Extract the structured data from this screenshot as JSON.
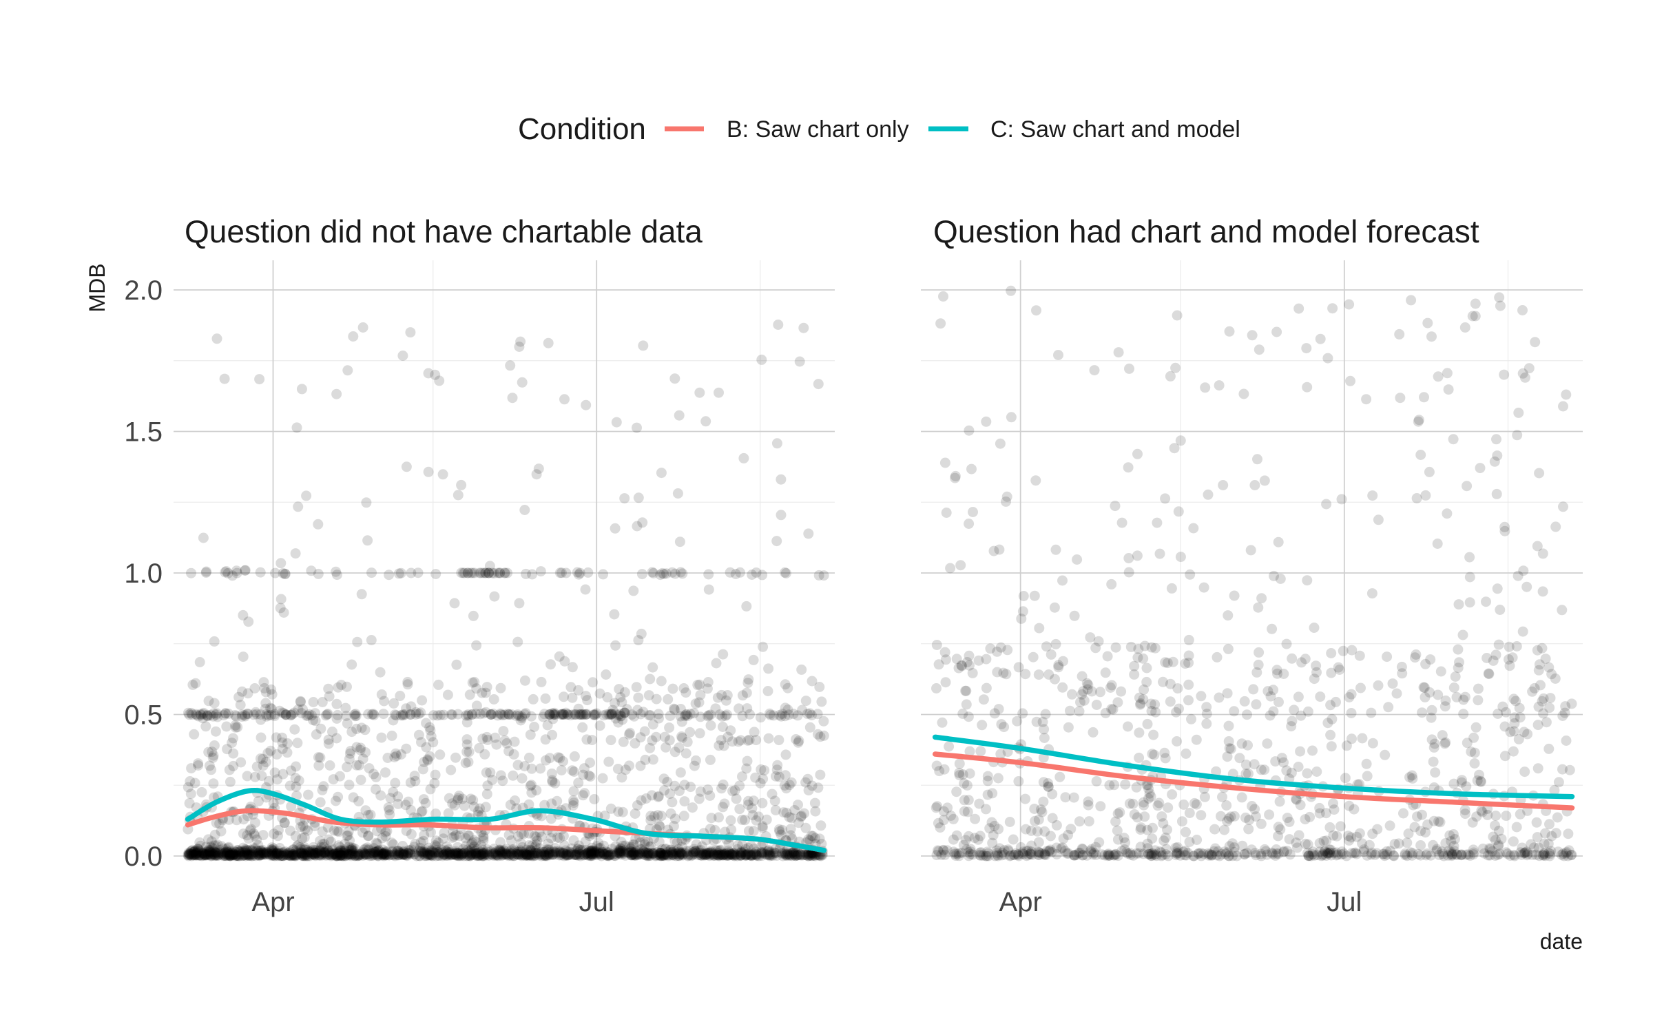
{
  "chart_data": {
    "type": "scatter",
    "legend": {
      "title": "Condition",
      "position": "top",
      "entries": [
        {
          "label": "B: Saw chart only",
          "color": "#F8766D"
        },
        {
          "label": "C: Saw chart and model",
          "color": "#00BFC4"
        }
      ]
    },
    "y_axis": {
      "label": "MDB",
      "range": [
        0,
        2
      ],
      "ticks": [
        0,
        0.5,
        1,
        1.5,
        2
      ],
      "tick_labels": [
        "0.0",
        "0.5",
        "1.0",
        "1.5",
        "2.0"
      ]
    },
    "x_axis": {
      "label": "date",
      "range": [
        "2020-03-04",
        "2020-09-06"
      ],
      "major_ticks": [
        "2020-04-01",
        "2020-07-01"
      ],
      "tick_labels": [
        "Apr",
        "Jul"
      ],
      "minor_ticks": [
        "2020-05-16",
        "2020-08-16"
      ]
    },
    "grid": true,
    "point_color": "#000000",
    "point_alpha": 0.14,
    "panels": [
      {
        "title": "Question did not have chartable data",
        "date_span": [
          "2020-03-08",
          "2020-09-03"
        ],
        "points_summary": "dense scatter of several thousand points concentrated near 0, with visible bands at 0.5 and 1.0 and sparse values up to 2.0",
        "series": [
          {
            "name": "B: Saw chart only",
            "color": "#F8766D",
            "points": [
              {
                "x": "2020-03-08",
                "y": 0.11
              },
              {
                "x": "2020-03-16",
                "y": 0.14
              },
              {
                "x": "2020-03-25",
                "y": 0.16
              },
              {
                "x": "2020-04-05",
                "y": 0.15
              },
              {
                "x": "2020-04-18",
                "y": 0.12
              },
              {
                "x": "2020-05-01",
                "y": 0.11
              },
              {
                "x": "2020-05-15",
                "y": 0.11
              },
              {
                "x": "2020-05-30",
                "y": 0.1
              },
              {
                "x": "2020-06-15",
                "y": 0.1
              },
              {
                "x": "2020-06-30",
                "y": 0.09
              },
              {
                "x": "2020-07-15",
                "y": 0.08
              },
              {
                "x": "2020-07-31",
                "y": 0.07
              },
              {
                "x": "2020-08-15",
                "y": 0.06
              },
              {
                "x": "2020-08-25",
                "y": 0.04
              },
              {
                "x": "2020-09-03",
                "y": 0.02
              }
            ]
          },
          {
            "name": "C: Saw chart and model",
            "color": "#00BFC4",
            "points": [
              {
                "x": "2020-03-08",
                "y": 0.13
              },
              {
                "x": "2020-03-16",
                "y": 0.19
              },
              {
                "x": "2020-03-25",
                "y": 0.23
              },
              {
                "x": "2020-04-01",
                "y": 0.22
              },
              {
                "x": "2020-04-10",
                "y": 0.18
              },
              {
                "x": "2020-04-20",
                "y": 0.13
              },
              {
                "x": "2020-05-01",
                "y": 0.12
              },
              {
                "x": "2020-05-16",
                "y": 0.13
              },
              {
                "x": "2020-06-01",
                "y": 0.13
              },
              {
                "x": "2020-06-15",
                "y": 0.16
              },
              {
                "x": "2020-06-30",
                "y": 0.13
              },
              {
                "x": "2020-07-15",
                "y": 0.08
              },
              {
                "x": "2020-07-31",
                "y": 0.07
              },
              {
                "x": "2020-08-15",
                "y": 0.06
              },
              {
                "x": "2020-08-25",
                "y": 0.04
              },
              {
                "x": "2020-09-03",
                "y": 0.02
              }
            ]
          }
        ]
      },
      {
        "title": "Question had chart and model forecast",
        "date_span": [
          "2020-03-08",
          "2020-09-03"
        ],
        "points_summary": "scatter of roughly a thousand points spread from 0 to 2.0, densest below 0.5",
        "series": [
          {
            "name": "B: Saw chart only",
            "color": "#F8766D",
            "points": [
              {
                "x": "2020-03-08",
                "y": 0.36
              },
              {
                "x": "2020-04-01",
                "y": 0.33
              },
              {
                "x": "2020-05-01",
                "y": 0.28
              },
              {
                "x": "2020-06-01",
                "y": 0.24
              },
              {
                "x": "2020-07-01",
                "y": 0.21
              },
              {
                "x": "2020-08-01",
                "y": 0.19
              },
              {
                "x": "2020-09-03",
                "y": 0.17
              }
            ]
          },
          {
            "name": "C: Saw chart and model",
            "color": "#00BFC4",
            "points": [
              {
                "x": "2020-03-08",
                "y": 0.42
              },
              {
                "x": "2020-04-01",
                "y": 0.38
              },
              {
                "x": "2020-05-01",
                "y": 0.32
              },
              {
                "x": "2020-06-01",
                "y": 0.27
              },
              {
                "x": "2020-07-01",
                "y": 0.24
              },
              {
                "x": "2020-08-01",
                "y": 0.22
              },
              {
                "x": "2020-09-03",
                "y": 0.21
              }
            ]
          }
        ]
      }
    ]
  }
}
